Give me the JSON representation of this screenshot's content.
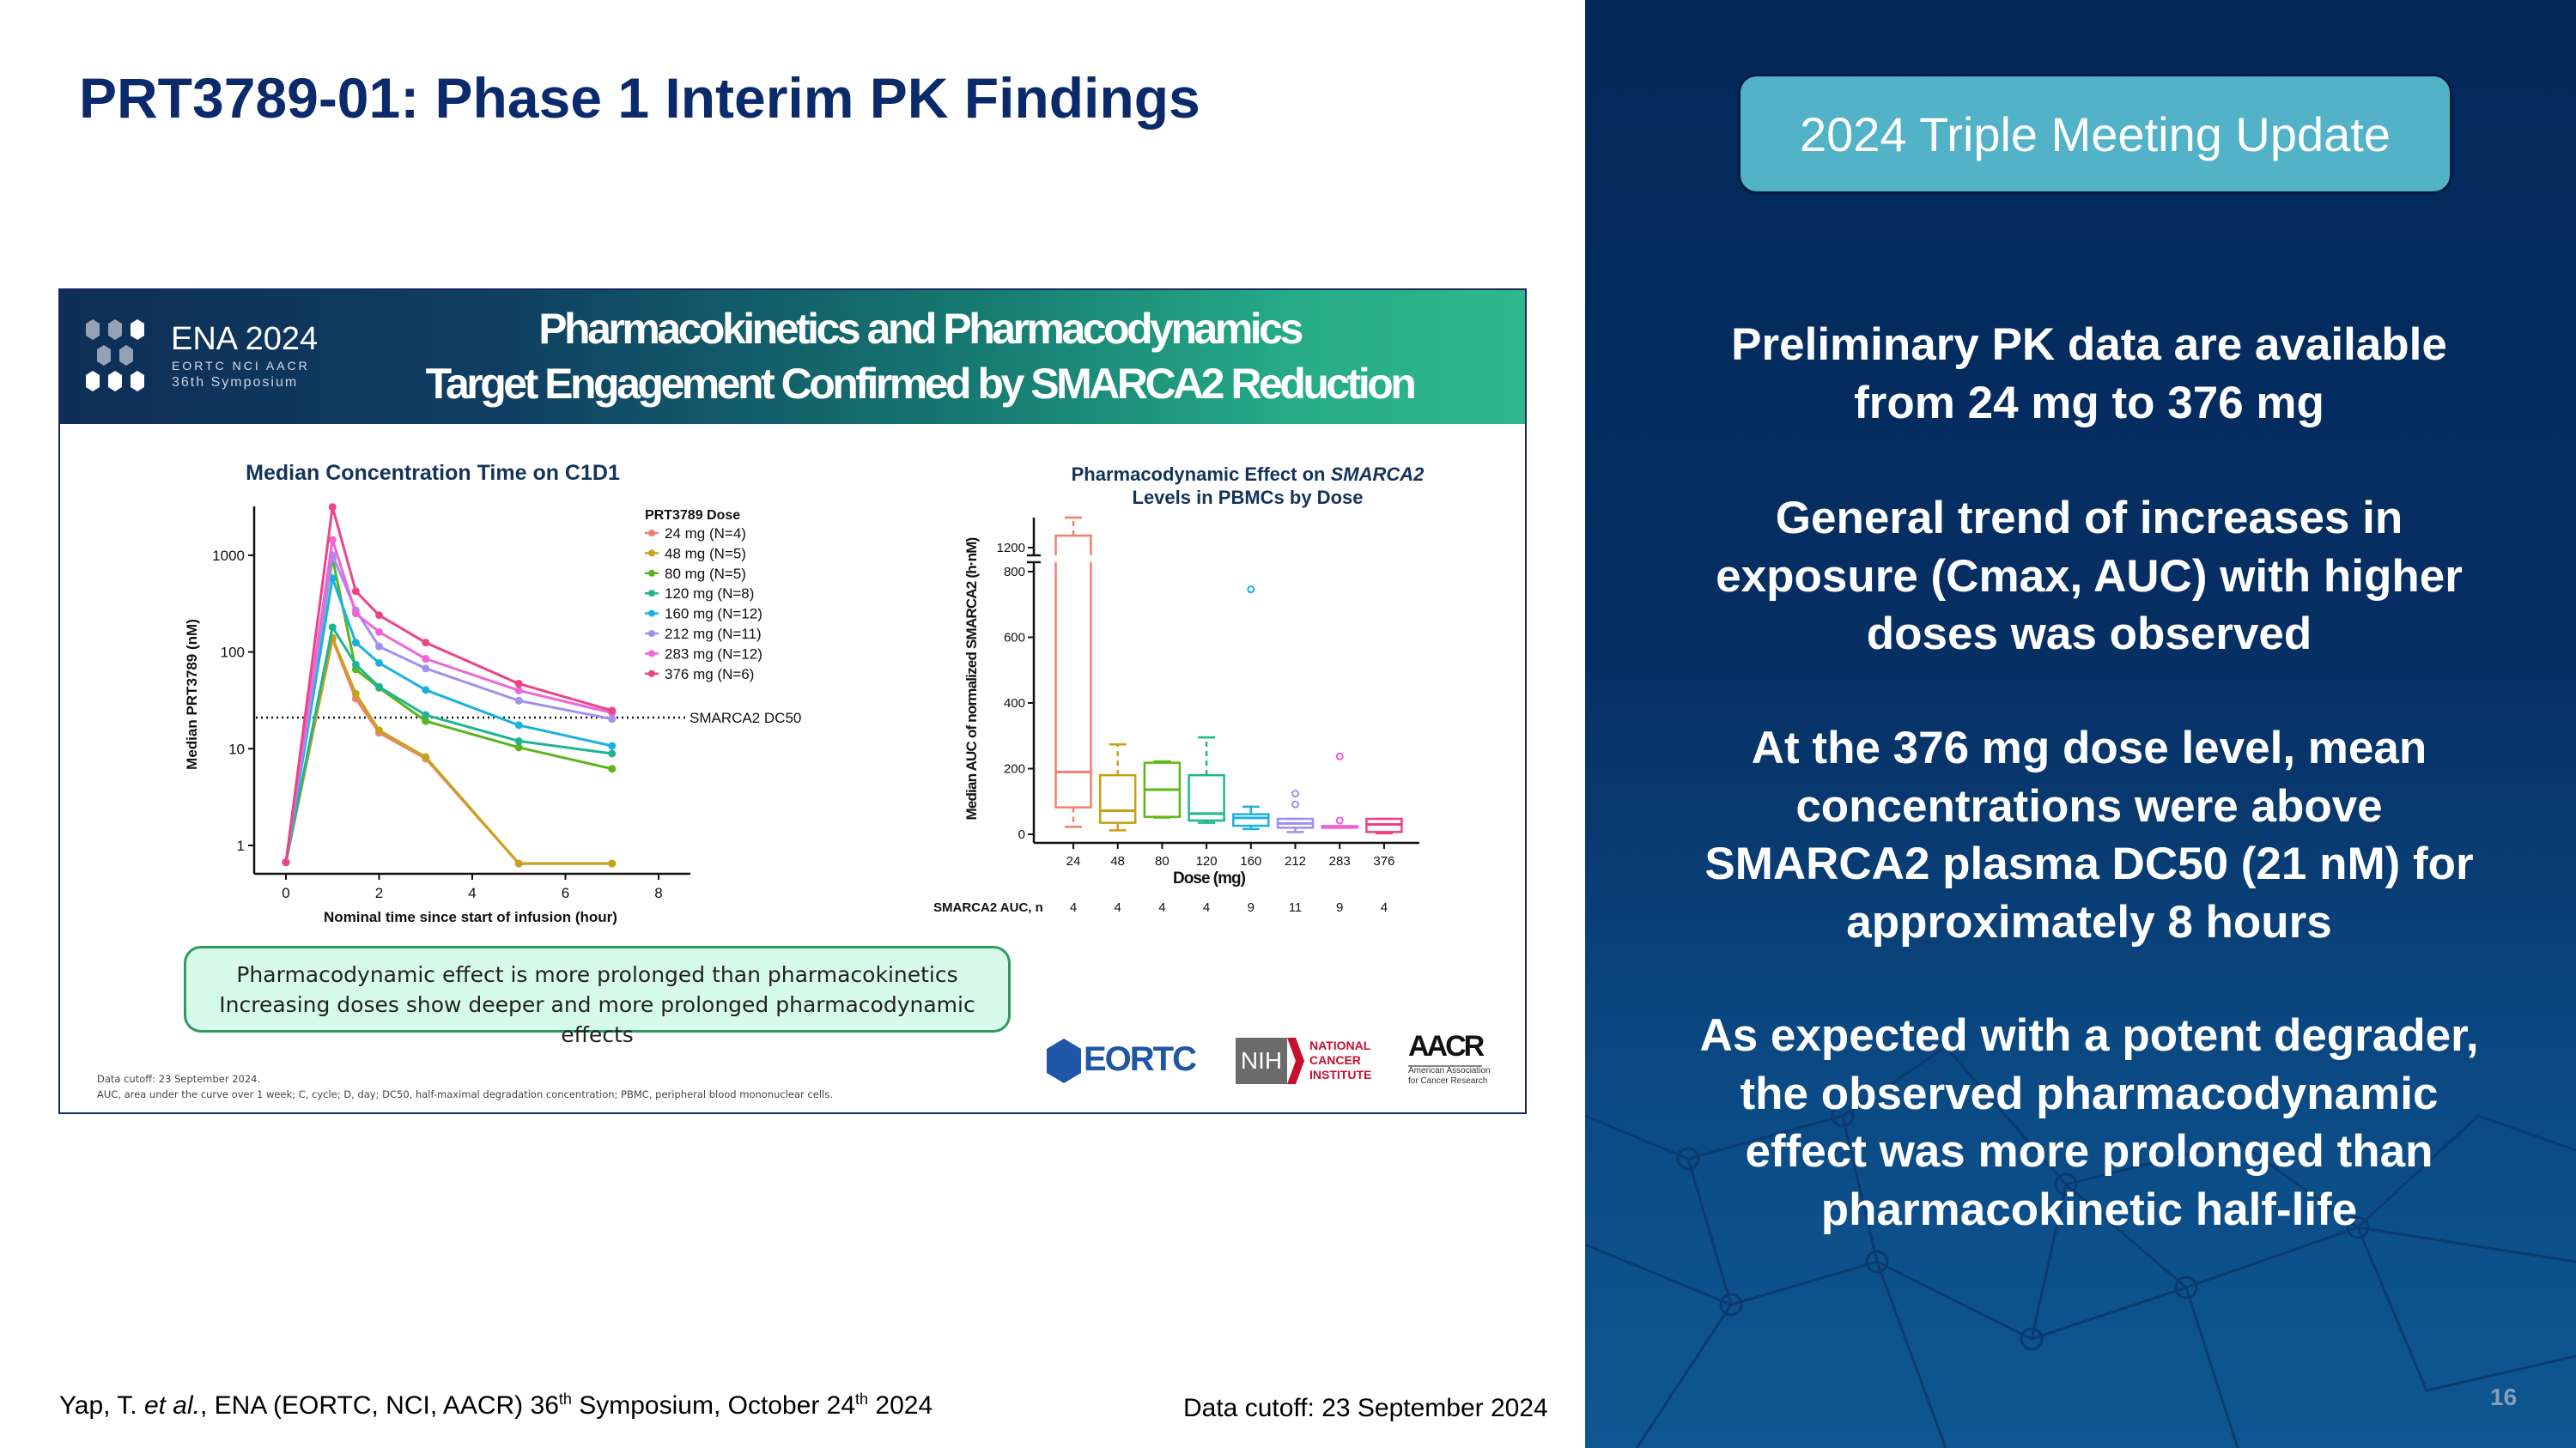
{
  "slide": {
    "title": "PRT3789-01: Phase 1 Interim PK Findings",
    "badge": "2024 Triple Meeting Update",
    "page_number": "16",
    "citation": {
      "pre": "Yap, T. ",
      "etal": "et al.",
      "mid": ", ENA (EORTC, NCI, AACR) 36",
      "sup1": "th",
      "mid2": " Symposium, October 24",
      "sup2": "th",
      "post": " 2024"
    },
    "data_cutoff": "Data cutoff: 23 September 2024"
  },
  "right_panel": {
    "paragraphs": [
      [
        "Preliminary PK data are available",
        "from 24 mg to 376 mg"
      ],
      [
        "General trend of increases in",
        "exposure (Cmax, AUC) with higher",
        "doses was observed"
      ],
      [
        "At the 376 mg dose level, mean",
        "concentrations were above",
        "SMARCA2 plasma DC50 (21 nM) for",
        "approximately 8 hours"
      ],
      [
        "As expected with a potent degrader,",
        "the observed pharmacodynamic",
        "effect was more prolonged than",
        "pharmacokinetic half-life"
      ]
    ]
  },
  "inset": {
    "logo": {
      "title": "ENA 2024",
      "sub": "EORTC  NCI  AACR",
      "symposium": "36th Symposium"
    },
    "banner": [
      "Pharmacokinetics and Pharmacodynamics",
      "Target Engagement Confirmed by SMARCA2 Reduction"
    ],
    "callout": [
      "Pharmacodynamic effect is more prolonged than pharmacokinetics",
      "Increasing doses show deeper and more prolonged pharmacodynamic effects"
    ],
    "footnotes": [
      "Data cutoff: 23 September 2024.",
      "AUC, area under the curve over 1 week; C, cycle; D, day; DC50, half-maximal degradation concentration; PBMC, peripheral blood mononuclear cells."
    ],
    "partner_logos": {
      "eortc": "EORTC",
      "nih": "NIH",
      "nci": [
        "NATIONAL",
        "CANCER",
        "INSTITUTE"
      ],
      "aacr": "AACR",
      "aacr_sub": [
        "American Association",
        "for Cancer Research"
      ]
    }
  },
  "chart_data": [
    {
      "type": "line",
      "title": "Median Concentration Time on C1D1",
      "xlabel": "Nominal time since start of infusion (hour)",
      "ylabel": "Median PRT3789 (nM)",
      "xlim": [
        0,
        8
      ],
      "xticks": [
        "0",
        "2",
        "4",
        "6",
        "8"
      ],
      "yscale": "log",
      "yticks": [
        "1",
        "10",
        "100",
        "1000"
      ],
      "legend_title": "PRT3789 Dose",
      "legend_position": "top-right",
      "reference_line": {
        "label": "SMARCA2 DC50",
        "value": 21
      },
      "x": [
        0,
        1,
        1.5,
        2,
        3,
        5,
        7
      ],
      "series": [
        {
          "name": "24 mg (N=4)",
          "color": "#ef7f72",
          "values": [
            0.67,
            135,
            33,
            14.6,
            7.9,
            0.65,
            0.65
          ]
        },
        {
          "name": "48 mg (N=5)",
          "color": "#c9a21c",
          "values": [
            0.67,
            140,
            37,
            15.5,
            8.2,
            0.65,
            0.65
          ]
        },
        {
          "name": "80 mg (N=5)",
          "color": "#5ab51c",
          "values": [
            0.67,
            930,
            66,
            42.6,
            19.3,
            10.3,
            6.2
          ]
        },
        {
          "name": "120 mg (N=8)",
          "color": "#1fb592",
          "values": [
            0.67,
            180,
            74,
            43.6,
            22.3,
            12,
            8.9
          ]
        },
        {
          "name": "160 mg (N=12)",
          "color": "#19b2e0",
          "values": [
            0.67,
            578,
            125,
            77,
            40.5,
            17.5,
            10.7
          ]
        },
        {
          "name": "212 mg (N=11)",
          "color": "#a48ff0",
          "values": [
            0.67,
            1000,
            270,
            114,
            67.6,
            31.4,
            20.3
          ]
        },
        {
          "name": "283 mg (N=12)",
          "color": "#f065d5",
          "values": [
            0.67,
            1440,
            250,
            161,
            85,
            40,
            23.5
          ]
        },
        {
          "name": "376 mg (N=6)",
          "color": "#ec4486",
          "values": [
            0.67,
            3150,
            425,
            240,
            125,
            47,
            24.8
          ]
        }
      ]
    },
    {
      "type": "box",
      "title_pre": "Pharmacodynamic Effect on ",
      "title_italic": "SMARCA2",
      "title_line2": "Levels in PBMCs by Dose",
      "xlabel": "Dose (mg)",
      "ylabel": "Median AUC of normalized SMARCA2 (h·nM)",
      "yticks": [
        "0",
        "200",
        "400",
        "600",
        "800",
        "1200"
      ],
      "y_axis_break": [
        800,
        1150
      ],
      "n_label": "SMARCA2 AUC, n",
      "categories": [
        "24",
        "48",
        "80",
        "120",
        "160",
        "212",
        "283",
        "376"
      ],
      "n": [
        "4",
        "4",
        "4",
        "4",
        "9",
        "11",
        "9",
        "4"
      ],
      "boxes": [
        {
          "min": 23,
          "q1": 82,
          "median": 190,
          "q3": 1240,
          "max": 1300,
          "outliers": [],
          "color": "#f07f70"
        },
        {
          "min": 12,
          "q1": 35,
          "median": 72,
          "q3": 180,
          "max": 274,
          "outliers": [],
          "color": "#c9a010"
        },
        {
          "min": 51,
          "q1": 53,
          "median": 136,
          "q3": 218,
          "max": 222,
          "outliers": [],
          "color": "#5cb814"
        },
        {
          "min": 35,
          "q1": 42,
          "median": 63,
          "q3": 180,
          "max": 295,
          "outliers": [],
          "color": "#1db88a"
        },
        {
          "min": 16,
          "q1": 26,
          "median": 50,
          "q3": 61,
          "max": 84,
          "outliers": [
            746
          ],
          "color": "#1ab0e0"
        },
        {
          "min": 7,
          "q1": 20,
          "median": 33,
          "q3": 47,
          "max": 47,
          "outliers": [
            91,
            124
          ],
          "color": "#a08ef0"
        },
        {
          "min": 20,
          "q1": 20,
          "median": 23,
          "q3": 25,
          "max": 25,
          "outliers": [
            42,
            237
          ],
          "color": "#f060d8"
        },
        {
          "min": 3,
          "q1": 7,
          "median": 30,
          "q3": 47,
          "max": 47,
          "outliers": [],
          "color": "#f0407f"
        }
      ]
    }
  ]
}
